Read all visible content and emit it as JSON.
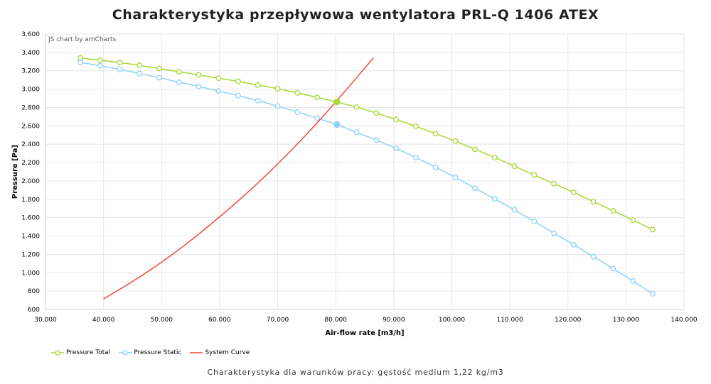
{
  "title": "Charakterystyka przepływowa wentylatora PRL-Q 1406 ATEX",
  "credit": "JS chart by amCharts",
  "footer_note": "Charakterystyka dla warunków pracy: gęstość medium 1,22 kg/m3",
  "chart_data": {
    "type": "line",
    "title": "Charakterystyka przepływowa wentylatora PRL-Q 1406 ATEX",
    "xlabel": "Air-flow rate [m3/h]",
    "ylabel": "Pressure [Pa]",
    "xlim": [
      30000,
      140000
    ],
    "ylim": [
      600,
      3600
    ],
    "x_ticks": [
      30000,
      40000,
      50000,
      60000,
      70000,
      80000,
      90000,
      100000,
      110000,
      120000,
      130000,
      140000
    ],
    "x_tick_labels": [
      "30.000",
      "40.000",
      "50.000",
      "60.000",
      "70.000",
      "80.000",
      "90.000",
      "100.000",
      "110.000",
      "120.000",
      "130.000",
      "140.000"
    ],
    "y_ticks": [
      600,
      800,
      1000,
      1200,
      1400,
      1600,
      1800,
      2000,
      2200,
      2400,
      2600,
      2800,
      3000,
      3200,
      3400,
      3600
    ],
    "y_tick_labels": [
      "600",
      "800",
      "1.000",
      "1.200",
      "1.400",
      "1.600",
      "1.800",
      "2.000",
      "2.200",
      "2.400",
      "2.600",
      "2.800",
      "3.000",
      "3.200",
      "3.400",
      "3.600"
    ],
    "grid": true,
    "legend_position": "bottom-left",
    "series": [
      {
        "name": "Pressure Total",
        "color": "#a6d932",
        "marker": "circle",
        "x": [
          36000,
          39400,
          42800,
          46200,
          49600,
          53000,
          56400,
          59800,
          63200,
          66600,
          70000,
          73400,
          76800,
          80200,
          83600,
          87000,
          90400,
          93800,
          97200,
          100600,
          104000,
          107400,
          110800,
          114200,
          117600,
          121000,
          124400,
          127800,
          131200,
          134600
        ],
        "values": [
          3340,
          3315,
          3290,
          3260,
          3225,
          3190,
          3155,
          3120,
          3085,
          3045,
          3005,
          2960,
          2910,
          2860,
          2805,
          2740,
          2670,
          2595,
          2515,
          2435,
          2345,
          2255,
          2160,
          2065,
          1970,
          1875,
          1775,
          1675,
          1575,
          1470
        ]
      },
      {
        "name": "Pressure Static",
        "color": "#8fd1f5",
        "marker": "circle",
        "x": [
          36000,
          39400,
          42800,
          46200,
          49600,
          53000,
          56400,
          59800,
          63200,
          66600,
          70000,
          73400,
          76800,
          80200,
          83600,
          87000,
          90400,
          93800,
          97200,
          100600,
          104000,
          107400,
          110800,
          114200,
          117600,
          121000,
          124400,
          127800,
          131200,
          134600
        ],
        "values": [
          3290,
          3255,
          3215,
          3170,
          3125,
          3075,
          3030,
          2980,
          2930,
          2875,
          2815,
          2750,
          2685,
          2615,
          2530,
          2445,
          2355,
          2255,
          2150,
          2040,
          1920,
          1805,
          1685,
          1560,
          1430,
          1305,
          1175,
          1045,
          910,
          770
        ]
      },
      {
        "name": "System Curve",
        "color": "#f04a3e",
        "marker": "none",
        "x": [
          40000,
          45000,
          50000,
          55000,
          60000,
          65000,
          70000,
          75000,
          80000,
          86500
        ],
        "values": [
          715,
          905,
          1115,
          1350,
          1610,
          1885,
          2185,
          2510,
          2860,
          3340
        ]
      }
    ],
    "operating_points": [
      {
        "series": "Pressure Total",
        "x": 80200,
        "y": 2860
      },
      {
        "series": "Pressure Static",
        "x": 80200,
        "y": 2615
      }
    ]
  }
}
